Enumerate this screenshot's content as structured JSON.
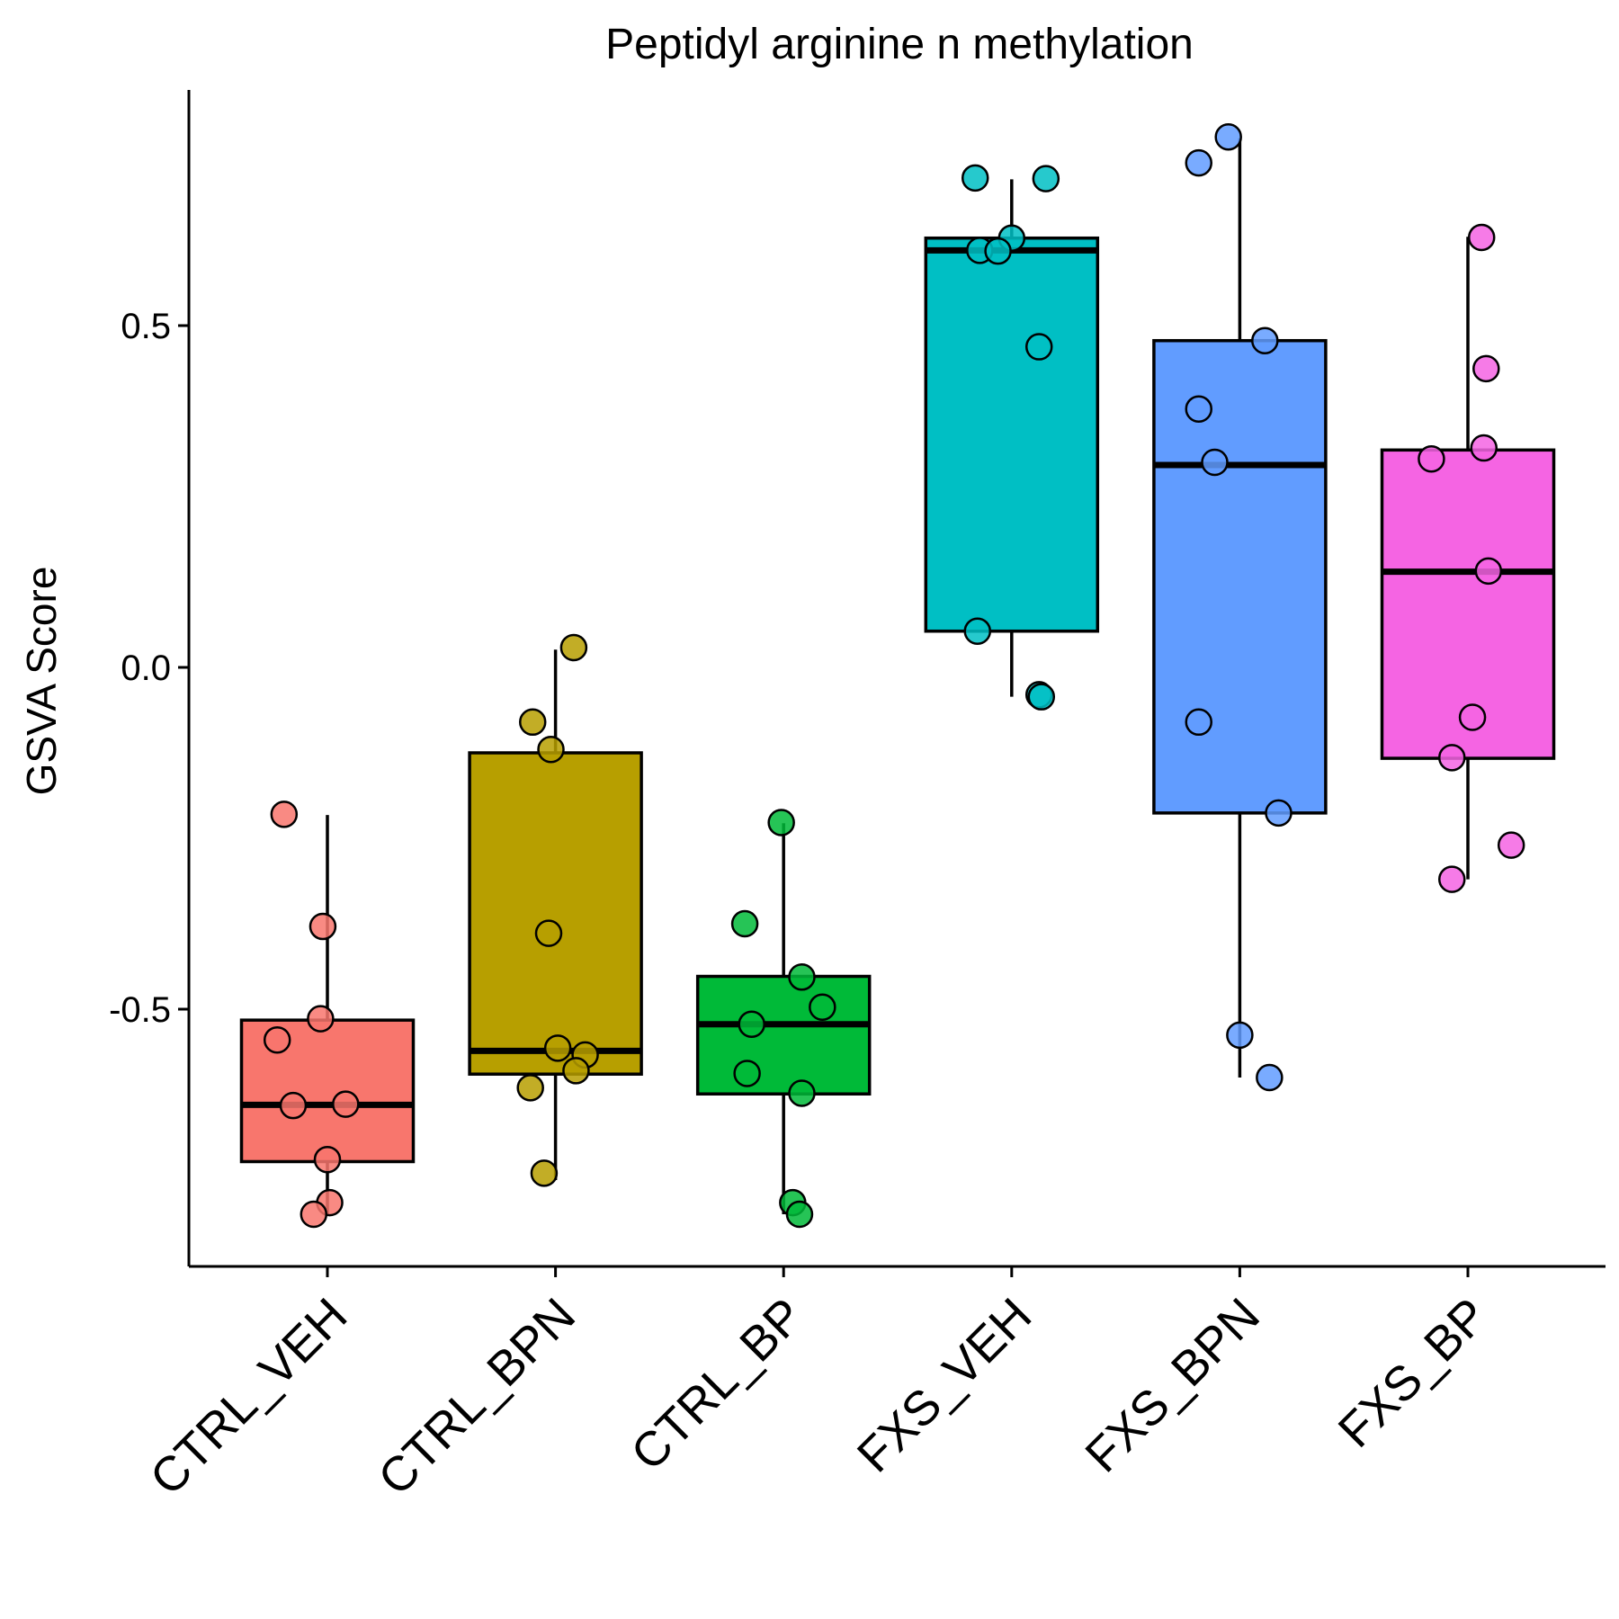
{
  "chart_data": {
    "type": "box",
    "title": "Peptidyl arginine n methylation",
    "xlabel": "",
    "ylabel": "GSVA Score",
    "ylim": [
      -0.87,
      0.84
    ],
    "yticks": [
      {
        "value": -0.5,
        "label": "-0.5"
      },
      {
        "value": 0.0,
        "label": "0.0"
      },
      {
        "value": 0.5,
        "label": "0.5"
      }
    ],
    "grid": false,
    "legend": "none",
    "categories": [
      "CTRL_VEH",
      "CTRL_BPN",
      "CTRL_BP",
      "FXS_VEH",
      "FXS_BPN",
      "FXS_BP"
    ],
    "groups": [
      {
        "name": "CTRL_VEH",
        "color": "#F8766D",
        "box": {
          "whisker_low": -0.8,
          "q1": -0.723,
          "median": -0.64,
          "q3": -0.516,
          "whisker_high": -0.216
        },
        "points": [
          {
            "x": -0.19,
            "y": -0.215
          },
          {
            "x": -0.02,
            "y": -0.379
          },
          {
            "x": -0.03,
            "y": -0.514
          },
          {
            "x": -0.22,
            "y": -0.545
          },
          {
            "x": -0.15,
            "y": -0.641
          },
          {
            "x": 0.08,
            "y": -0.639
          },
          {
            "x": 0.0,
            "y": -0.72
          },
          {
            "x": 0.01,
            "y": -0.783
          },
          {
            "x": -0.06,
            "y": -0.8
          }
        ]
      },
      {
        "name": "CTRL_BPN",
        "color": "#B79F00",
        "box": {
          "whisker_low": -0.75,
          "q1": -0.595,
          "median": -0.561,
          "q3": -0.125,
          "whisker_high": 0.026
        },
        "points": [
          {
            "x": 0.08,
            "y": 0.029
          },
          {
            "x": -0.1,
            "y": -0.08
          },
          {
            "x": -0.02,
            "y": -0.12
          },
          {
            "x": -0.03,
            "y": -0.389
          },
          {
            "x": 0.01,
            "y": -0.557
          },
          {
            "x": 0.13,
            "y": -0.567
          },
          {
            "x": 0.09,
            "y": -0.59
          },
          {
            "x": -0.11,
            "y": -0.615
          },
          {
            "x": -0.05,
            "y": -0.74
          }
        ]
      },
      {
        "name": "CTRL_BP",
        "color": "#00BA38",
        "box": {
          "whisker_low": -0.8,
          "q1": -0.624,
          "median": -0.522,
          "q3": -0.452,
          "whisker_high": -0.228
        },
        "points": [
          {
            "x": -0.01,
            "y": -0.227
          },
          {
            "x": -0.17,
            "y": -0.375
          },
          {
            "x": 0.08,
            "y": -0.453
          },
          {
            "x": 0.17,
            "y": -0.497
          },
          {
            "x": -0.14,
            "y": -0.522
          },
          {
            "x": -0.16,
            "y": -0.594
          },
          {
            "x": 0.08,
            "y": -0.623
          },
          {
            "x": 0.04,
            "y": -0.783
          },
          {
            "x": 0.07,
            "y": -0.8
          }
        ]
      },
      {
        "name": "FXS_VEH",
        "color": "#00BFC4",
        "box": {
          "whisker_low": -0.043,
          "q1": 0.053,
          "median": 0.61,
          "q3": 0.628,
          "whisker_high": 0.714
        },
        "points": [
          {
            "x": -0.16,
            "y": 0.716
          },
          {
            "x": 0.15,
            "y": 0.715
          },
          {
            "x": 0.0,
            "y": 0.628
          },
          {
            "x": -0.14,
            "y": 0.61
          },
          {
            "x": -0.06,
            "y": 0.609
          },
          {
            "x": 0.12,
            "y": 0.469
          },
          {
            "x": -0.15,
            "y": 0.053
          },
          {
            "x": 0.12,
            "y": -0.04
          },
          {
            "x": 0.13,
            "y": -0.043
          }
        ]
      },
      {
        "name": "FXS_BPN",
        "color": "#619CFF",
        "box": {
          "whisker_low": -0.6,
          "q1": -0.213,
          "median": 0.296,
          "q3": 0.478,
          "whisker_high": 0.774
        },
        "points": [
          {
            "x": -0.05,
            "y": 0.776
          },
          {
            "x": -0.18,
            "y": 0.738
          },
          {
            "x": 0.11,
            "y": 0.478
          },
          {
            "x": -0.18,
            "y": 0.378
          },
          {
            "x": -0.11,
            "y": 0.3
          },
          {
            "x": -0.18,
            "y": -0.08
          },
          {
            "x": 0.17,
            "y": -0.213
          },
          {
            "x": 0.0,
            "y": -0.538
          },
          {
            "x": 0.13,
            "y": -0.6
          }
        ]
      },
      {
        "name": "FXS_BP",
        "color": "#F564E3",
        "box": {
          "whisker_low": -0.31,
          "q1": -0.133,
          "median": 0.14,
          "q3": 0.318,
          "whisker_high": 0.63
        },
        "points": [
          {
            "x": 0.06,
            "y": 0.629
          },
          {
            "x": 0.08,
            "y": 0.437
          },
          {
            "x": 0.07,
            "y": 0.321
          },
          {
            "x": -0.16,
            "y": 0.305
          },
          {
            "x": 0.09,
            "y": 0.141
          },
          {
            "x": 0.02,
            "y": -0.073
          },
          {
            "x": -0.07,
            "y": -0.132
          },
          {
            "x": 0.19,
            "y": -0.26
          },
          {
            "x": -0.07,
            "y": -0.31
          }
        ]
      }
    ]
  }
}
